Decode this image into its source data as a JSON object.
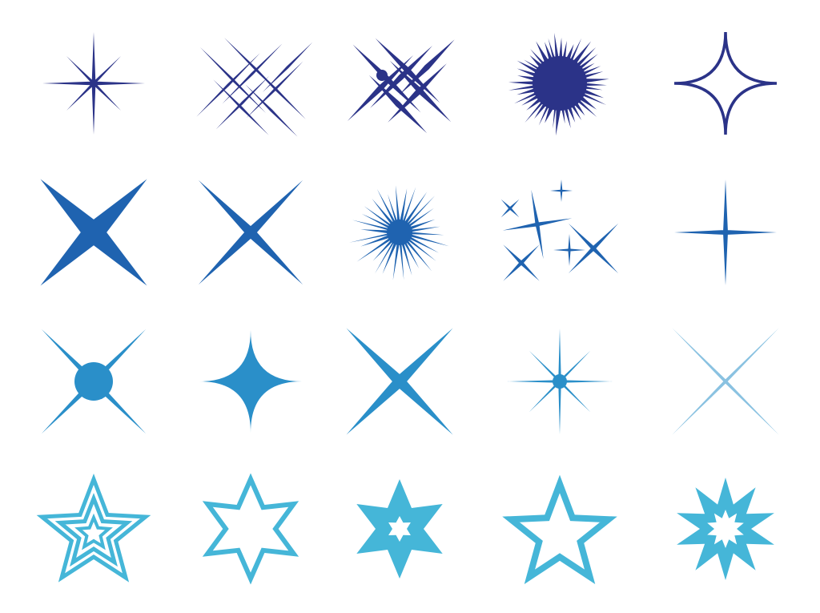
{
  "palette": {
    "row1": "#2b3388",
    "row2": "#1f63b0",
    "row3": "#2a8fc9",
    "row4": "#45b6d8"
  },
  "rows": [
    {
      "icons": [
        "eight-point-sparkle-icon",
        "crossed-lines-sparkle-icon",
        "crossed-lines-dot-sparkle-icon",
        "spiky-burst-icon",
        "four-point-outline-star-icon"
      ]
    },
    {
      "icons": [
        "bold-x-sparkle-icon",
        "thin-x-sparkle-icon",
        "spiky-burst-icon",
        "sparkle-cluster-icon",
        "thin-cross-sparkle-icon"
      ]
    },
    {
      "icons": [
        "x-sparkle-with-circle-icon",
        "four-point-solid-star-icon",
        "x-sparkle-icon",
        "eight-point-dot-sparkle-icon",
        "faint-x-sparkle-icon"
      ]
    },
    {
      "icons": [
        "double-outline-star-icon",
        "six-point-outline-star-icon",
        "six-point-solid-star-icon",
        "five-point-outline-star-icon",
        "ten-point-burst-star-icon"
      ]
    }
  ]
}
